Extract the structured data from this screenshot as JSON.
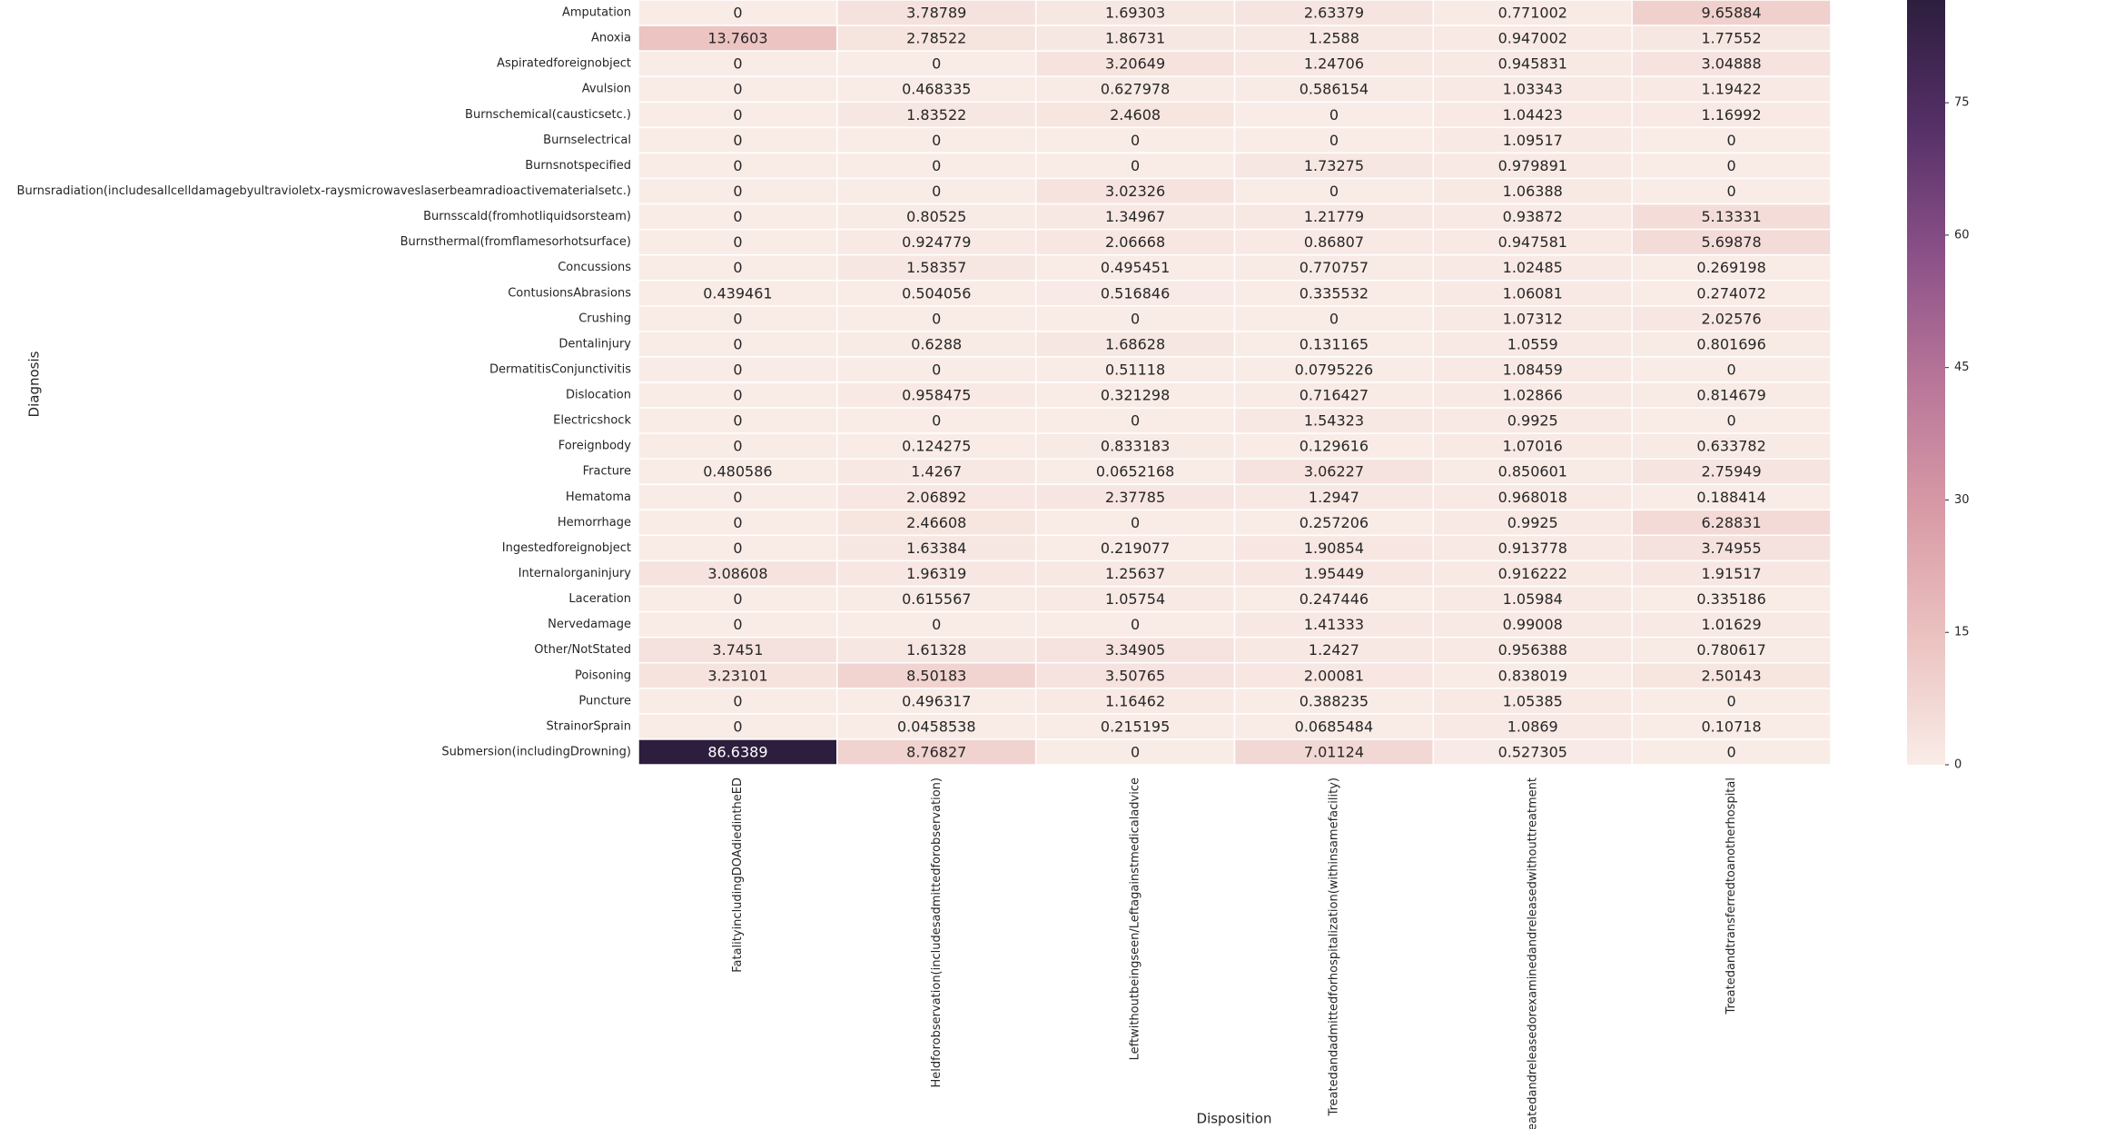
{
  "chart_data": {
    "type": "heatmap",
    "xlabel": "Disposition",
    "ylabel": "Diagnosis",
    "categories": [
      "FatalityincludingDOAdiedintheED",
      "Heldforobservation(includesadmittedforobservation)",
      "Leftwithoutbeingseen/Leftagainstmedicaladvice",
      "Treatedandadmittedforhospitalization(withinsamefacility)",
      "Treatedandreleasedorexaminedandreleasedwithouttreatment",
      "Treatedandtransferredtoanotherhospital"
    ],
    "rows": [
      "Amputation",
      "Anoxia",
      "Aspiratedforeignobject",
      "Avulsion",
      "Burnschemical(causticsetc.)",
      "Burnselectrical",
      "Burnsnotspecified",
      "Burnsradiation(includesallcelldamagebyultravioletx-raysmicrowaveslaserbeamradioactivematerialsetc.)",
      "Burnsscald(fromhotliquidsorsteam)",
      "Burnsthermal(fromflamesorhotsurface)",
      "Concussions",
      "ContusionsAbrasions",
      "Crushing",
      "Dentalinjury",
      "DermatitisConjunctivitis",
      "Dislocation",
      "Electricshock",
      "Foreignbody",
      "Fracture",
      "Hematoma",
      "Hemorrhage",
      "Ingestedforeignobject",
      "Internalorganinjury",
      "Laceration",
      "Nervedamage",
      "Other/NotStated",
      "Poisoning",
      "Puncture",
      "StrainorSprain",
      "Submersion(includingDrowning)"
    ],
    "values": [
      [
        0,
        3.78789,
        1.69303,
        2.63379,
        0.771002,
        9.65884
      ],
      [
        13.7603,
        2.78522,
        1.86731,
        1.2588,
        0.947002,
        1.77552
      ],
      [
        0,
        0,
        3.20649,
        1.24706,
        0.945831,
        3.04888
      ],
      [
        0,
        0.468335,
        0.627978,
        0.586154,
        1.03343,
        1.19422
      ],
      [
        0,
        1.83522,
        2.4608,
        0,
        1.04423,
        1.16992
      ],
      [
        0,
        0,
        0,
        0,
        1.09517,
        0
      ],
      [
        0,
        0,
        0,
        1.73275,
        0.979891,
        0
      ],
      [
        0,
        0,
        3.02326,
        0,
        1.06388,
        0
      ],
      [
        0,
        0.80525,
        1.34967,
        1.21779,
        0.93872,
        5.13331
      ],
      [
        0,
        0.924779,
        2.06668,
        0.86807,
        0.947581,
        5.69878
      ],
      [
        0,
        1.58357,
        0.495451,
        0.770757,
        1.02485,
        0.269198
      ],
      [
        0.439461,
        0.504056,
        0.516846,
        0.335532,
        1.06081,
        0.274072
      ],
      [
        0,
        0,
        0,
        0,
        1.07312,
        2.02576
      ],
      [
        0,
        0.6288,
        1.68628,
        0.131165,
        1.0559,
        0.801696
      ],
      [
        0,
        0,
        0.51118,
        0.0795226,
        1.08459,
        0
      ],
      [
        0,
        0.958475,
        0.321298,
        0.716427,
        1.02866,
        0.814679
      ],
      [
        0,
        0,
        0,
        1.54323,
        0.9925,
        0
      ],
      [
        0,
        0.124275,
        0.833183,
        0.129616,
        1.07016,
        0.633782
      ],
      [
        0.480586,
        1.4267,
        0.0652168,
        3.06227,
        0.850601,
        2.75949
      ],
      [
        0,
        2.06892,
        2.37785,
        1.2947,
        0.968018,
        0.188414
      ],
      [
        0,
        2.46608,
        0,
        0.257206,
        0.9925,
        6.28831
      ],
      [
        0,
        1.63384,
        0.219077,
        1.90854,
        0.913778,
        3.74955
      ],
      [
        3.08608,
        1.96319,
        1.25637,
        1.95449,
        0.916222,
        1.91517
      ],
      [
        0,
        0.615567,
        1.05754,
        0.247446,
        1.05984,
        0.335186
      ],
      [
        0,
        0,
        0,
        1.41333,
        0.99008,
        1.01629
      ],
      [
        3.7451,
        1.61328,
        3.34905,
        1.2427,
        0.956388,
        0.780617
      ],
      [
        3.23101,
        8.50183,
        3.50765,
        2.00081,
        0.838019,
        2.50143
      ],
      [
        0,
        0.496317,
        1.16462,
        0.388235,
        1.05385,
        0
      ],
      [
        0,
        0.0458538,
        0.215195,
        0.0685484,
        1.0869,
        0.10718
      ],
      [
        86.6389,
        8.76827,
        0,
        7.01124,
        0.527305,
        0
      ]
    ],
    "colorbar": {
      "lim": [
        0,
        86.6389
      ],
      "ticks": [
        0,
        15,
        30,
        45,
        60,
        75
      ],
      "colors": [
        "#f9ece7",
        "#ebc2c0",
        "#d89aa6",
        "#b97699",
        "#8b5188",
        "#563068",
        "#2d1e3e"
      ]
    }
  }
}
